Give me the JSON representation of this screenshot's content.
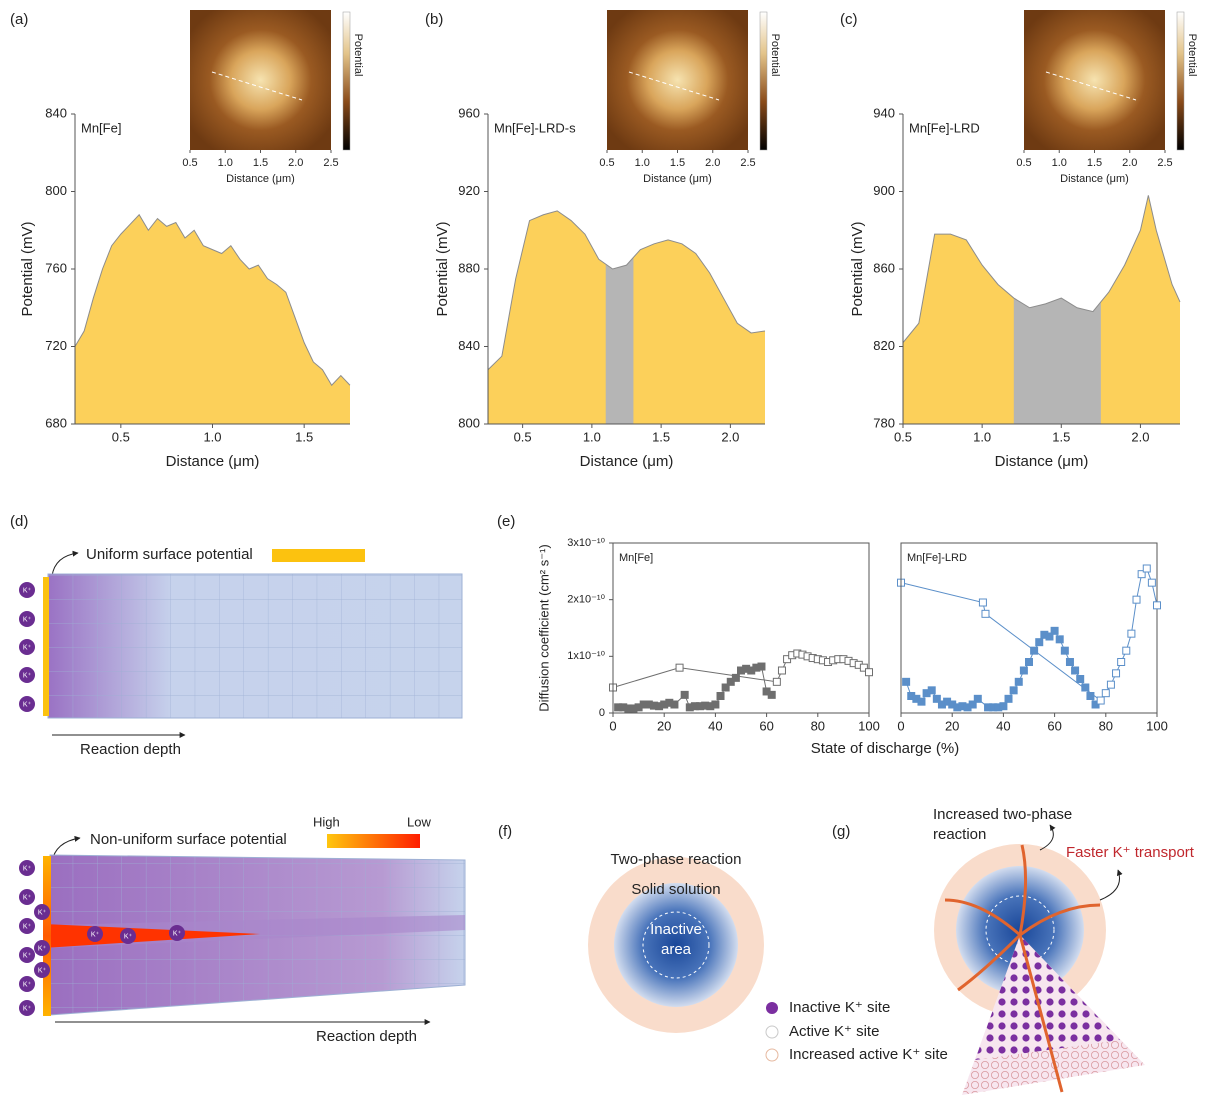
{
  "chart_data": [
    {
      "type": "area",
      "panel_label": "(a)",
      "label": "Mn[Fe]",
      "xlabel": "Distance (μm)",
      "ylabel": "Potential (mV)",
      "color": "#fcd05a",
      "line_color": "#8c8c8c",
      "xlim": [
        0.25,
        1.75
      ],
      "ylim": [
        680,
        840
      ],
      "xticks": [
        0.5,
        {
          "value": 1,
          "label": "1.0"
        },
        1.5
      ],
      "yticks": [
        680,
        720,
        760,
        800,
        840
      ],
      "x": [
        0.25,
        0.3,
        0.35,
        0.4,
        0.45,
        0.5,
        0.55,
        0.6,
        0.65,
        0.7,
        0.75,
        0.8,
        0.85,
        0.9,
        0.95,
        1.0,
        1.05,
        1.1,
        1.15,
        1.2,
        1.25,
        1.3,
        1.35,
        1.4,
        1.45,
        1.5,
        1.55,
        1.6,
        1.65,
        1.7,
        1.75
      ],
      "values": [
        720,
        728,
        745,
        760,
        772,
        778,
        783,
        788,
        780,
        786,
        782,
        784,
        776,
        780,
        772,
        770,
        768,
        772,
        765,
        760,
        762,
        755,
        752,
        748,
        735,
        722,
        712,
        708,
        700,
        705,
        700
      ],
      "inset": {
        "xlabel": "Distance (μm)",
        "xlim": [
          0.5,
          2.5
        ],
        "xticks": [
          0.5,
          {
            "value": 1,
            "label": "1.0"
          },
          1.5,
          {
            "value": 2,
            "label": "2.0"
          },
          2.5
        ],
        "colorbar_label": "Potential"
      }
    },
    {
      "type": "area",
      "panel_label": "(b)",
      "label": "Mn[Fe]-LRD-s",
      "xlabel": "Distance (μm)",
      "ylabel": "Potential (mV)",
      "color": "#fcd05a",
      "line_color": "#8c8c8c",
      "highlight": {
        "range": [
          1.1,
          1.3
        ],
        "color": "#b5b5b5"
      },
      "xlim": [
        0.25,
        2.25
      ],
      "ylim": [
        800,
        960
      ],
      "xticks": [
        0.5,
        {
          "value": 1,
          "label": "1.0"
        },
        1.5,
        {
          "value": 2,
          "label": "2.0"
        }
      ],
      "yticks": [
        800,
        840,
        880,
        920,
        960
      ],
      "x": [
        0.25,
        0.35,
        0.45,
        0.55,
        0.65,
        0.75,
        0.85,
        0.95,
        1.05,
        1.15,
        1.25,
        1.35,
        1.45,
        1.55,
        1.65,
        1.75,
        1.85,
        1.95,
        2.05,
        2.15,
        2.25
      ],
      "values": [
        828,
        835,
        875,
        905,
        908,
        910,
        905,
        898,
        885,
        880,
        882,
        890,
        893,
        895,
        893,
        888,
        878,
        865,
        852,
        847,
        848
      ],
      "inset": {
        "xlabel": "Distance (μm)",
        "xlim": [
          0.5,
          2.5
        ],
        "xticks": [
          0.5,
          {
            "value": 1,
            "label": "1.0"
          },
          1.5,
          {
            "value": 2,
            "label": "2.0"
          },
          2.5
        ],
        "colorbar_label": "Potential"
      }
    },
    {
      "type": "area",
      "panel_label": "(c)",
      "label": "Mn[Fe]-LRD",
      "xlabel": "Distance (μm)",
      "ylabel": "Potential (mV)",
      "color": "#fcd05a",
      "line_color": "#8c8c8c",
      "highlight": {
        "range": [
          1.2,
          1.75
        ],
        "color": "#b5b5b5"
      },
      "xlim": [
        0.5,
        2.25
      ],
      "ylim": [
        780,
        940
      ],
      "xticks": [
        0.5,
        {
          "value": 1,
          "label": "1.0"
        },
        1.5,
        {
          "value": 2,
          "label": "2.0"
        }
      ],
      "yticks": [
        780,
        820,
        860,
        900,
        940
      ],
      "x": [
        0.5,
        0.6,
        0.7,
        0.8,
        0.9,
        1.0,
        1.1,
        1.2,
        1.3,
        1.4,
        1.5,
        1.6,
        1.7,
        1.8,
        1.9,
        2.0,
        2.05,
        2.1,
        2.2,
        2.25
      ],
      "values": [
        822,
        832,
        878,
        878,
        875,
        862,
        852,
        845,
        840,
        842,
        845,
        840,
        838,
        848,
        862,
        880,
        898,
        880,
        852,
        843
      ],
      "inset": {
        "xlabel": "Distance (μm)",
        "xlim": [
          0.5,
          2.5
        ],
        "xticks": [
          0.5,
          {
            "value": 1,
            "label": "1.0"
          },
          1.5,
          {
            "value": 2,
            "label": "2.0"
          },
          2.5
        ],
        "colorbar_label": "Potential"
      }
    },
    {
      "type": "scatter",
      "panel_label": "(e)",
      "label": "Mn[Fe]",
      "xlabel": "State of discharge (%)",
      "ylabel": "Diffusion coefficient (cm² s⁻¹)",
      "xlim": [
        0,
        100
      ],
      "ylim": [
        0,
        3e-10
      ],
      "xticks": [
        0,
        20,
        40,
        60,
        80,
        100
      ],
      "yticks": [
        0,
        {
          "value": 1e-10,
          "label": "1x10⁻¹⁰"
        },
        {
          "value": 2e-10,
          "label": "2x10⁻¹⁰"
        },
        {
          "value": 3e-10,
          "label": "3x10⁻¹⁰"
        }
      ],
      "series": [
        {
          "color": "#6e6e6e",
          "marker": "filled",
          "x": [
            2,
            4,
            6,
            8,
            10,
            12,
            14,
            16,
            18,
            20,
            22,
            24,
            28,
            30,
            32,
            34,
            36,
            38,
            40,
            42,
            44,
            46,
            48,
            50,
            52,
            54,
            56,
            58,
            60,
            62
          ],
          "values": [
            1e-11,
            1e-11,
            8e-12,
            8e-12,
            1e-11,
            1.5e-11,
            1.5e-11,
            1.3e-11,
            1.2e-11,
            1.5e-11,
            1.8e-11,
            1.5e-11,
            3.2e-11,
            1e-11,
            1.2e-11,
            1.2e-11,
            1.3e-11,
            1.2e-11,
            1.5e-11,
            3e-11,
            4.5e-11,
            5.5e-11,
            6.2e-11,
            7.5e-11,
            7.8e-11,
            7.5e-11,
            8e-11,
            8.2e-11,
            3.8e-11,
            3.2e-11
          ]
        },
        {
          "color": "#6e6e6e",
          "marker": "open",
          "x": [
            0,
            26,
            64,
            66,
            68,
            70,
            72,
            74,
            76,
            78,
            80,
            82,
            84,
            86,
            88,
            90,
            92,
            94,
            96,
            98,
            100
          ],
          "values": [
            4.5e-11,
            8e-11,
            5.5e-11,
            7.5e-11,
            9.5e-11,
            1.02e-10,
            1.05e-10,
            1.03e-10,
            1e-10,
            9.7e-11,
            9.5e-11,
            9.3e-11,
            9e-11,
            9.3e-11,
            9.5e-11,
            9.5e-11,
            9.2e-11,
            8.8e-11,
            8.5e-11,
            8e-11,
            7.2e-11
          ]
        }
      ]
    },
    {
      "type": "scatter",
      "label": "Mn[Fe]-LRD",
      "xlim": [
        0,
        100
      ],
      "ylim": [
        0,
        3e-10
      ],
      "xticks": [
        0,
        20,
        40,
        60,
        80,
        100
      ],
      "series": [
        {
          "color": "#5b8fc9",
          "marker": "filled",
          "x": [
            2,
            4,
            6,
            8,
            10,
            12,
            14,
            16,
            18,
            20,
            22,
            24,
            26,
            28,
            30,
            34,
            36,
            38,
            40,
            42,
            44,
            46,
            48,
            50,
            52,
            54,
            56,
            58,
            60,
            62,
            64,
            66,
            68,
            70,
            72,
            74,
            76
          ],
          "values": [
            5.5e-11,
            3e-11,
            2.5e-11,
            2e-11,
            3.5e-11,
            4e-11,
            2.5e-11,
            1.5e-11,
            2e-11,
            1.5e-11,
            1e-11,
            1.2e-11,
            1e-11,
            1.5e-11,
            2.5e-11,
            1e-11,
            1e-11,
            1e-11,
            1.2e-11,
            2.5e-11,
            4e-11,
            5.5e-11,
            7.5e-11,
            9e-11,
            1.1e-10,
            1.25e-10,
            1.38e-10,
            1.35e-10,
            1.45e-10,
            1.3e-10,
            1.1e-10,
            9e-11,
            7.5e-11,
            6e-11,
            4.5e-11,
            3e-11,
            1.5e-11
          ]
        },
        {
          "color": "#5b8fc9",
          "marker": "open",
          "x": [
            0,
            32,
            33,
            78,
            80,
            82,
            84,
            86,
            88,
            90,
            92,
            94,
            96,
            98,
            100
          ],
          "values": [
            2.3e-10,
            1.95e-10,
            1.75e-10,
            2.2e-11,
            3.5e-11,
            5e-11,
            7e-11,
            9e-11,
            1.1e-10,
            1.4e-10,
            2e-10,
            2.45e-10,
            2.55e-10,
            2.3e-10,
            1.9e-10
          ]
        }
      ]
    }
  ],
  "diagrams": {
    "d": {
      "panel_label": "(d)",
      "uniform": "Uniform surface potential",
      "reaction_depth": "Reaction depth",
      "ion": "K⁺",
      "nonuniform": "Non-uniform surface potential",
      "high": "High",
      "low": "Low",
      "reaction_depth_bottom": "Reaction depth"
    },
    "f": {
      "panel_label": "(f)",
      "two_phase": "Two-phase reaction",
      "solid_solution": "Solid solution",
      "inactive_line1": "Inactive",
      "inactive_line2": "area"
    },
    "g": {
      "panel_label": "(g)",
      "increased_line1": "Increased two-phase",
      "increased_line2": "reaction",
      "faster": "Faster K⁺ transport"
    },
    "legend": [
      "Inactive K⁺ site",
      "Active K⁺ site",
      "Increased active K⁺ site"
    ]
  }
}
